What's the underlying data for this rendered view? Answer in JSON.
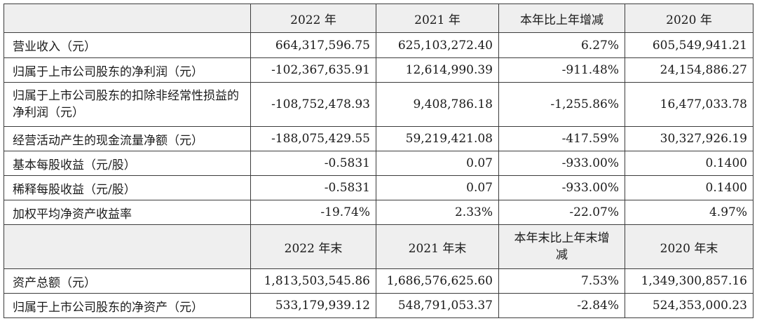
{
  "header1": [
    "",
    "2022 年",
    "2021 年",
    "本年比上年增减",
    "2020 年"
  ],
  "rows1": [
    {
      "label": "营业收入（元）",
      "v2022": "664,317,596.75",
      "v2021": "625,103,272.40",
      "change": "6.27%",
      "v2020": "605,549,941.21"
    },
    {
      "label": "归属于上市公司股东的净利润（元）",
      "v2022": "-102,367,635.91",
      "v2021": "12,614,990.39",
      "change": "-911.48%",
      "v2020": "24,154,886.27"
    },
    {
      "label": "归属于上市公司股东的扣除非经常性损益的净利润（元）",
      "v2022": "-108,752,478.93",
      "v2021": "9,408,786.18",
      "change": "-1,255.86%",
      "v2020": "16,477,033.78"
    },
    {
      "label": "经营活动产生的现金流量净额（元）",
      "v2022": "-188,075,429.55",
      "v2021": "59,219,421.08",
      "change": "-417.59%",
      "v2020": "30,327,926.19"
    },
    {
      "label": "基本每股收益（元/股）",
      "v2022": "-0.5831",
      "v2021": "0.07",
      "change": "-933.00%",
      "v2020": "0.1400"
    },
    {
      "label": "稀释每股收益（元/股）",
      "v2022": "-0.5831",
      "v2021": "0.07",
      "change": "-933.00%",
      "v2020": "0.1400"
    },
    {
      "label": "加权平均净资产收益率",
      "v2022": "-19.74%",
      "v2021": "2.33%",
      "change": "-22.07%",
      "v2020": "4.97%"
    }
  ],
  "header2": [
    "",
    "2022 年末",
    "2021 年末",
    "本年末比上年末增减",
    "2020 年末"
  ],
  "rows2": [
    {
      "label": "资产总额（元）",
      "v2022": "1,813,503,545.86",
      "v2021": "1,686,576,625.60",
      "change": "7.53%",
      "v2020": "1,349,300,857.16"
    },
    {
      "label": "归属于上市公司股东的净资产（元）",
      "v2022": "533,179,939.12",
      "v2021": "548,791,053.37",
      "change": "-2.84%",
      "v2020": "524,353,000.23"
    }
  ]
}
